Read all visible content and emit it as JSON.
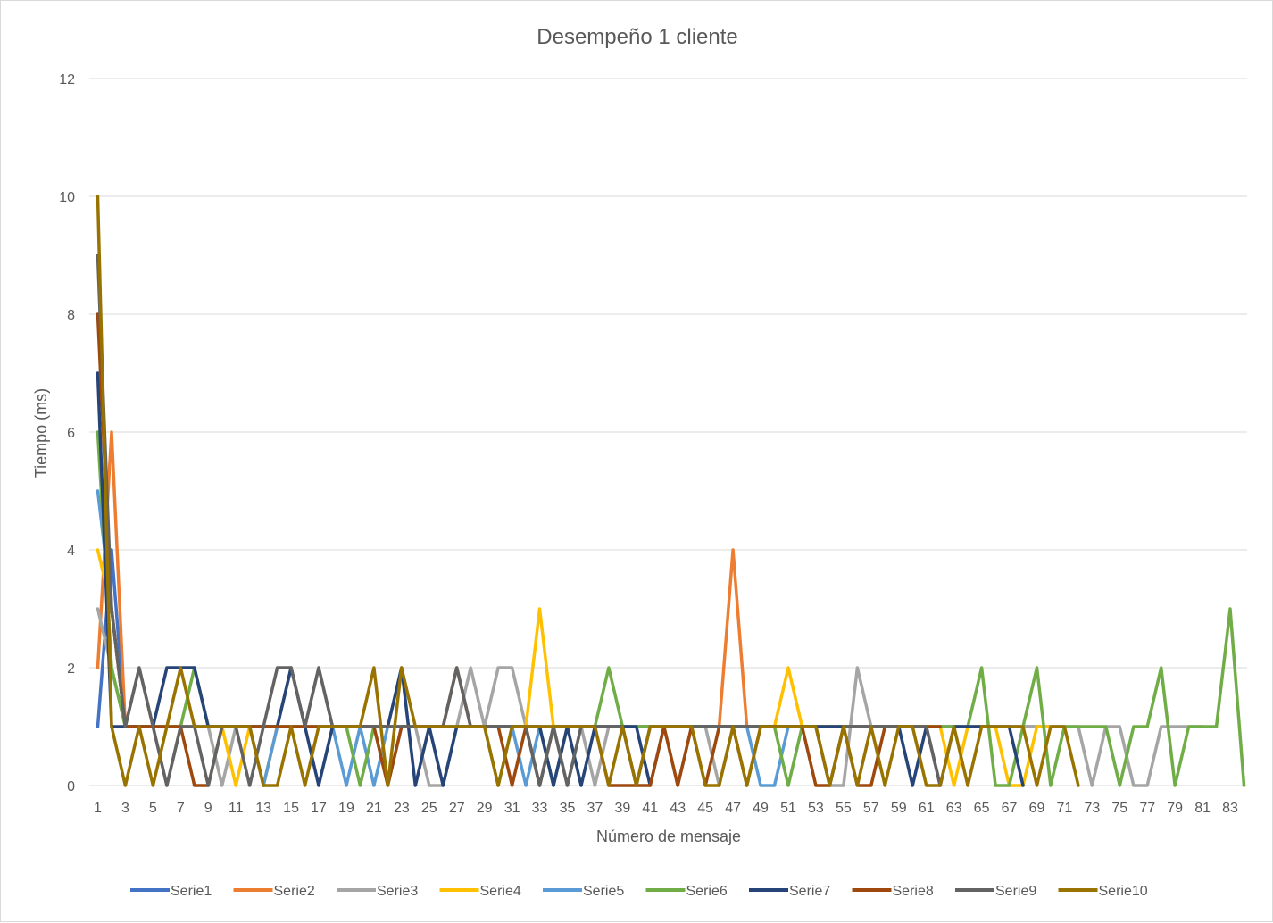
{
  "chart_data": {
    "type": "line",
    "title": "Desempeño 1 cliente",
    "xlabel": "Número de mensaje",
    "ylabel": "Tiempo (ms)",
    "ylim": [
      0,
      12
    ],
    "yticks": [
      0,
      2,
      4,
      6,
      8,
      10,
      12
    ],
    "xlim": [
      1,
      84
    ],
    "xticks": [
      1,
      3,
      5,
      7,
      9,
      11,
      13,
      15,
      17,
      19,
      21,
      23,
      25,
      27,
      29,
      31,
      33,
      35,
      37,
      39,
      41,
      43,
      45,
      47,
      49,
      51,
      53,
      55,
      57,
      59,
      61,
      63,
      65,
      67,
      69,
      71,
      73,
      75,
      77,
      79,
      81,
      83
    ],
    "grid": true,
    "legend_position": "bottom",
    "series": [
      {
        "name": "Serie1",
        "color": "#4472C4",
        "values": [
          1,
          4,
          1,
          1,
          1,
          1,
          1,
          1,
          1,
          1,
          1,
          1,
          1,
          1,
          1,
          1,
          1,
          1,
          1,
          1,
          1,
          1,
          1,
          1,
          1,
          1,
          1,
          1,
          1,
          1,
          1,
          1,
          1,
          1,
          1,
          1,
          1,
          1,
          1,
          1,
          1,
          1,
          1,
          1,
          1,
          1,
          1,
          1,
          1,
          1,
          1,
          1,
          1,
          1,
          1,
          1,
          1,
          1,
          1,
          1,
          1,
          1,
          1,
          1,
          1,
          1,
          1,
          1,
          1,
          1,
          1
        ]
      },
      {
        "name": "Serie2",
        "color": "#ED7D31",
        "values": [
          2,
          6,
          1,
          1,
          1,
          1,
          1,
          1,
          1,
          1,
          1,
          1,
          1,
          1,
          1,
          1,
          1,
          1,
          1,
          1,
          1,
          1,
          1,
          1,
          1,
          1,
          1,
          1,
          1,
          1,
          1,
          1,
          1,
          1,
          1,
          1,
          1,
          1,
          1,
          1,
          1,
          1,
          1,
          1,
          1,
          1,
          4,
          1,
          1,
          1,
          1,
          1,
          1,
          1,
          1,
          1,
          1,
          1,
          1,
          1,
          1,
          1
        ]
      },
      {
        "name": "Serie3",
        "color": "#A5A5A5",
        "values": [
          3,
          2,
          1,
          2,
          1,
          0,
          1,
          1,
          1,
          0,
          1,
          1,
          0,
          1,
          2,
          1,
          2,
          1,
          1,
          1,
          1,
          0,
          1,
          1,
          0,
          0,
          1,
          2,
          1,
          2,
          2,
          1,
          0,
          1,
          0,
          1,
          0,
          1,
          1,
          0,
          1,
          1,
          0,
          1,
          1,
          0,
          1,
          1,
          1,
          1,
          1,
          1,
          1,
          0,
          0,
          2,
          1,
          1,
          1,
          1,
          1,
          1,
          1,
          1,
          1,
          1,
          1,
          1,
          1,
          1,
          1,
          1,
          0,
          1,
          1,
          0,
          0,
          1,
          1,
          1,
          1
        ]
      },
      {
        "name": "Serie4",
        "color": "#FFC000",
        "values": [
          4,
          3,
          1,
          1,
          1,
          1,
          1,
          1,
          1,
          1,
          0,
          1,
          0,
          1,
          1,
          1,
          1,
          1,
          1,
          1,
          1,
          1,
          1,
          1,
          1,
          1,
          1,
          1,
          1,
          1,
          1,
          1,
          3,
          1,
          1,
          1,
          1,
          1,
          1,
          1,
          1,
          1,
          1,
          1,
          1,
          1,
          1,
          1,
          1,
          1,
          2,
          1,
          1,
          1,
          1,
          1,
          1,
          1,
          1,
          1,
          1,
          1,
          0,
          1,
          1,
          1,
          0,
          0,
          1,
          1
        ]
      },
      {
        "name": "Serie5",
        "color": "#5B9BD5",
        "values": [
          5,
          3,
          1,
          1,
          1,
          1,
          1,
          1,
          1,
          1,
          1,
          1,
          0,
          1,
          1,
          1,
          1,
          1,
          0,
          1,
          0,
          1,
          1,
          1,
          1,
          1,
          1,
          1,
          1,
          1,
          1,
          0,
          1,
          1,
          1,
          1,
          1,
          1,
          1,
          1,
          1,
          1,
          1,
          1,
          1,
          1,
          1,
          1,
          0,
          0,
          1,
          1
        ]
      },
      {
        "name": "Serie6",
        "color": "#70AD47",
        "values": [
          6,
          2,
          1,
          1,
          1,
          1,
          1,
          2,
          1,
          1,
          1,
          1,
          1,
          1,
          1,
          1,
          1,
          1,
          1,
          0,
          1,
          1,
          1,
          1,
          1,
          1,
          1,
          1,
          1,
          0,
          1,
          1,
          1,
          0,
          1,
          1,
          1,
          2,
          1,
          1,
          1,
          1,
          1,
          1,
          1,
          1,
          1,
          1,
          1,
          1,
          0,
          1,
          1,
          1,
          1,
          1,
          1,
          1,
          1,
          1,
          1,
          1,
          1,
          1,
          2,
          0,
          0,
          1,
          2,
          0,
          1,
          1,
          1,
          1,
          0,
          1,
          1,
          2,
          0,
          1,
          1,
          1,
          3,
          0
        ]
      },
      {
        "name": "Serie7",
        "color": "#264478",
        "values": [
          7,
          1,
          1,
          1,
          1,
          2,
          2,
          2,
          1,
          1,
          1,
          1,
          1,
          1,
          2,
          1,
          0,
          1,
          1,
          1,
          1,
          1,
          2,
          0,
          1,
          0,
          1,
          1,
          1,
          1,
          1,
          1,
          1,
          0,
          1,
          0,
          1,
          1,
          1,
          1,
          0,
          1,
          1,
          1,
          1,
          1,
          1,
          1,
          1,
          1,
          1,
          1,
          1,
          1,
          1,
          1,
          1,
          1,
          1,
          0,
          1,
          0,
          1,
          1,
          1,
          1,
          1,
          0
        ]
      },
      {
        "name": "Serie8",
        "color": "#9E480E",
        "values": [
          8,
          3,
          1,
          1,
          1,
          1,
          1,
          0,
          0,
          1,
          1,
          1,
          1,
          1,
          1,
          1,
          1,
          1,
          1,
          1,
          1,
          0,
          1,
          1,
          1,
          1,
          2,
          1,
          1,
          1,
          0,
          1,
          0,
          1,
          1,
          1,
          1,
          0,
          0,
          0,
          0,
          1,
          0,
          1,
          0,
          1,
          1,
          0,
          1,
          1,
          1,
          1,
          0,
          0,
          1,
          0,
          0,
          1,
          1,
          1,
          1,
          1
        ]
      },
      {
        "name": "Serie9",
        "color": "#636363",
        "values": [
          9,
          3,
          1,
          2,
          1,
          0,
          1,
          1,
          0,
          1,
          1,
          0,
          1,
          2,
          2,
          1,
          2,
          1,
          1,
          1,
          1,
          1,
          1,
          1,
          1,
          1,
          2,
          1,
          1,
          1,
          1,
          1,
          0,
          1,
          0,
          1,
          1,
          1,
          1,
          0,
          1,
          1,
          1,
          1,
          1,
          1,
          1,
          1,
          1,
          1,
          1,
          1,
          1,
          0,
          1,
          1,
          1,
          1,
          1,
          1,
          1,
          0
        ]
      },
      {
        "name": "Serie10",
        "color": "#997300",
        "values": [
          10,
          1,
          0,
          1,
          0,
          1,
          2,
          1,
          1,
          1,
          1,
          1,
          0,
          0,
          1,
          0,
          1,
          1,
          1,
          1,
          2,
          0,
          2,
          1,
          1,
          1,
          1,
          1,
          1,
          0,
          1,
          1,
          1,
          1,
          1,
          1,
          1,
          0,
          1,
          0,
          1,
          1,
          1,
          1,
          0,
          0,
          1,
          0,
          1,
          1,
          1,
          1,
          1,
          0,
          1,
          0,
          1,
          0,
          1,
          1,
          0,
          0,
          1,
          0,
          1,
          1,
          1,
          1,
          0,
          1,
          1,
          0
        ]
      }
    ]
  }
}
